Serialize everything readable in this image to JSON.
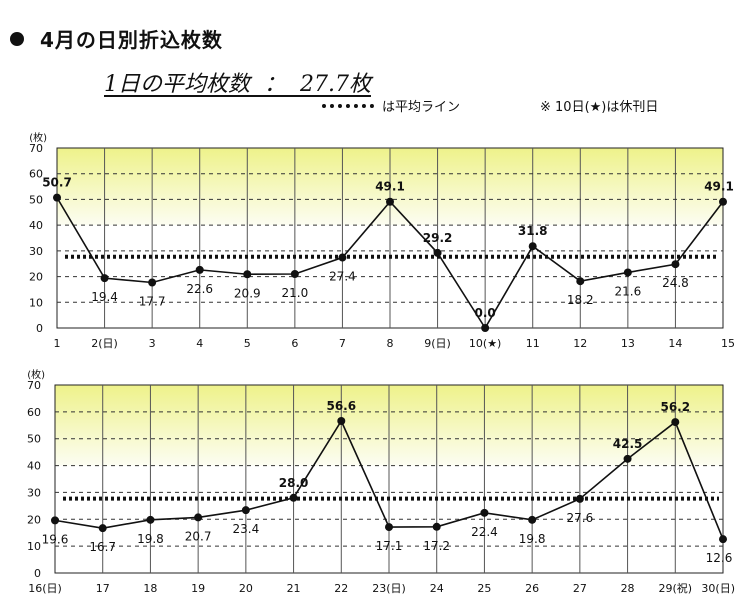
{
  "header": {
    "title": "4月の日別折込枚数",
    "average_text": "1日の平均枚数  ：  27.7枚",
    "legend_line_label": "は平均ライン",
    "note": "※  10日(★)は休刊日"
  },
  "colors": {
    "band_top": "#eef28a",
    "band_bottom": "#fcfdf2",
    "line": "#111111",
    "grid_vertical": "#555555",
    "grid_dashed": "#333333"
  },
  "chart_data": [
    {
      "type": "line",
      "y_unit": "(枚)",
      "ylim": [
        0,
        70
      ],
      "yticks": [
        0,
        10,
        20,
        30,
        40,
        50,
        60,
        70
      ],
      "average": 27.7,
      "categories": [
        "1",
        "2(日)",
        "3",
        "4",
        "5",
        "6",
        "7",
        "8",
        "9(日)",
        "10(★)",
        "11",
        "12",
        "13",
        "14",
        "15"
      ],
      "values": [
        50.7,
        19.4,
        17.7,
        22.6,
        20.9,
        21.0,
        27.4,
        49.1,
        29.2,
        0.0,
        31.8,
        18.2,
        21.6,
        24.8,
        49.1
      ],
      "labels": [
        "50.7",
        "19.4",
        "17.7",
        "22.6",
        "20.9",
        "21.0",
        "27.4",
        "49.1",
        "29.2",
        "0.0",
        "31.8",
        "18.2",
        "21.6",
        "24.8",
        "49.1"
      ],
      "grid": true
    },
    {
      "type": "line",
      "y_unit": "(枚)",
      "ylim": [
        0,
        70
      ],
      "yticks": [
        0,
        10,
        20,
        30,
        40,
        50,
        60,
        70
      ],
      "average": 27.7,
      "categories": [
        "16(日)",
        "17",
        "18",
        "19",
        "20",
        "21",
        "22",
        "23(日)",
        "24",
        "25",
        "26",
        "27",
        "28",
        "29(祝)",
        "30(日)"
      ],
      "values": [
        19.6,
        16.7,
        19.8,
        20.7,
        23.4,
        28.0,
        56.6,
        17.1,
        17.2,
        22.4,
        19.8,
        27.6,
        42.5,
        56.2,
        12.6
      ],
      "labels": [
        "19.6",
        "16.7",
        "19.8",
        "20.7",
        "23.4",
        "28.0",
        "56.6",
        "17.1",
        "17.2",
        "22.4",
        "19.8",
        "27.6",
        "42.5",
        "56.2",
        "12.6"
      ],
      "grid": true
    }
  ]
}
